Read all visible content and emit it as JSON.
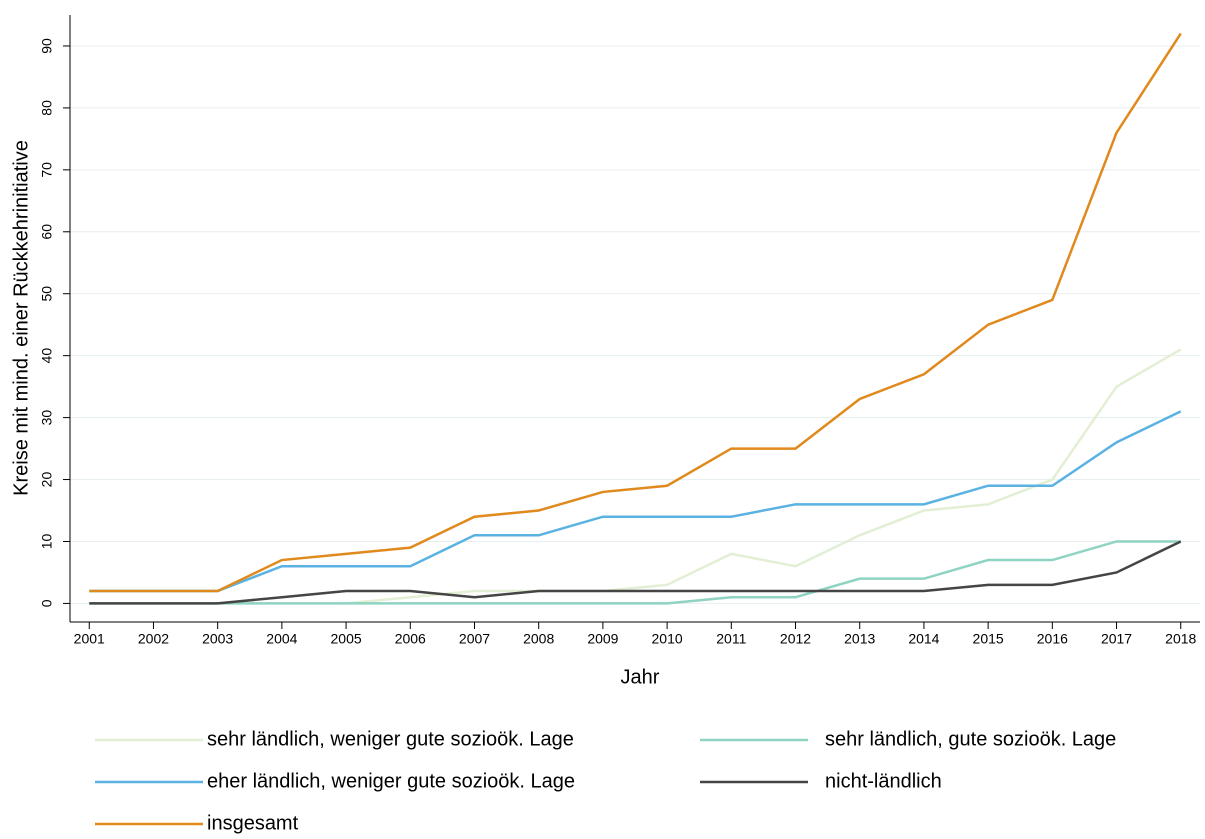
{
  "chart_data": {
    "type": "line",
    "x_label": "Jahr",
    "y_label": "Kreise mit mind. einer Rückkehrinitiative",
    "x": [
      2001,
      2002,
      2003,
      2004,
      2005,
      2006,
      2007,
      2008,
      2009,
      2010,
      2011,
      2012,
      2013,
      2014,
      2015,
      2016,
      2017,
      2018
    ],
    "series": [
      {
        "name": "sehr ländlich, weniger gute sozioök. Lage",
        "color": "#e2efd4",
        "values": [
          0,
          0,
          0,
          0,
          0,
          1,
          2,
          2,
          2,
          3,
          8,
          6,
          11,
          15,
          16,
          20,
          35,
          41
        ]
      },
      {
        "name": "sehr ländlich, gute sozioök. Lage",
        "color": "#8fd3c3",
        "values": [
          0,
          0,
          0,
          0,
          0,
          0,
          0,
          0,
          0,
          0,
          1,
          1,
          4,
          4,
          7,
          7,
          10,
          10
        ]
      },
      {
        "name": "eher ländlich, weniger gute sozioök. Lage",
        "color": "#5ab2e3",
        "values": [
          2,
          2,
          2,
          6,
          6,
          6,
          11,
          11,
          14,
          14,
          14,
          16,
          16,
          16,
          19,
          19,
          26,
          31
        ]
      },
      {
        "name": "nicht-ländlich",
        "color": "#454545",
        "values": [
          0,
          0,
          0,
          1,
          2,
          2,
          1,
          2,
          2,
          2,
          2,
          2,
          2,
          2,
          3,
          3,
          5,
          10
        ]
      },
      {
        "name": "insgesamt",
        "color": "#e0891c",
        "values": [
          2,
          2,
          2,
          7,
          8,
          9,
          14,
          15,
          18,
          19,
          25,
          25,
          33,
          37,
          45,
          49,
          76,
          92
        ]
      }
    ],
    "xlim": [
      2000.7,
      2018.3
    ],
    "xticks": [
      2001,
      2002,
      2003,
      2004,
      2005,
      2006,
      2007,
      2008,
      2009,
      2010,
      2011,
      2012,
      2013,
      2014,
      2015,
      2016,
      2017,
      2018
    ],
    "ylim": [
      -3,
      95
    ],
    "yticks": [
      0,
      10,
      20,
      30,
      40,
      50,
      60,
      70,
      80,
      90
    ],
    "grid": true,
    "legend": "bottom"
  }
}
